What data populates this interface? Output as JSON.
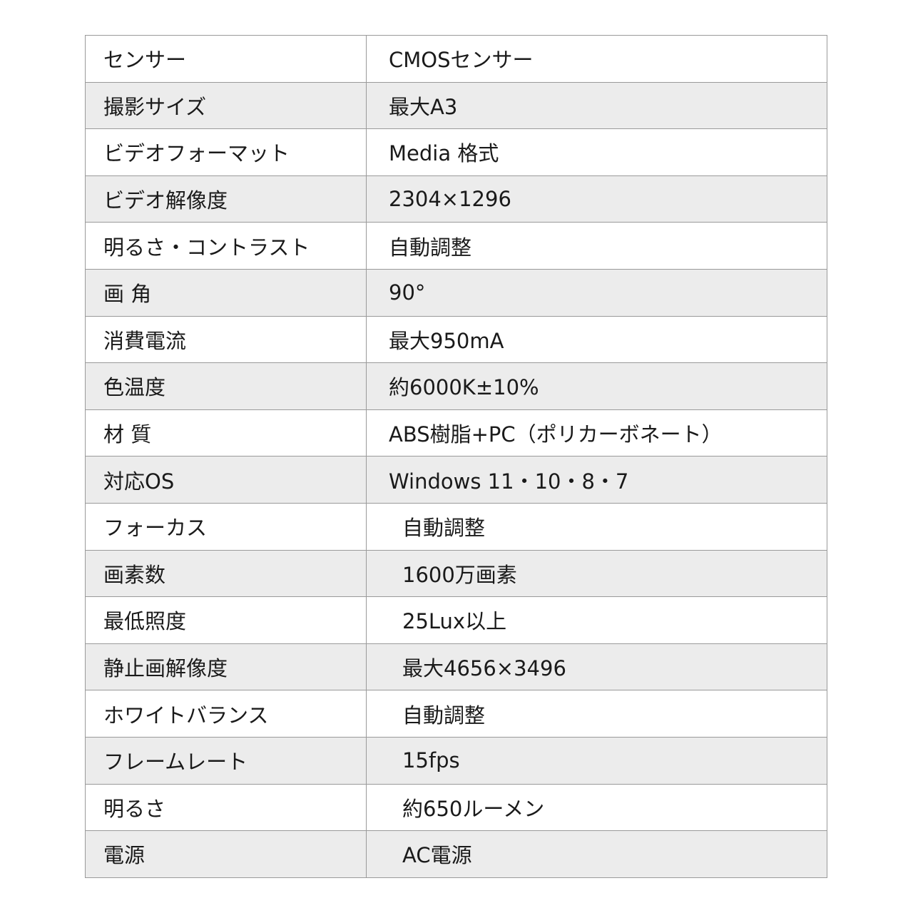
{
  "specs": [
    {
      "label": "センサー",
      "value": "CMOSセンサー"
    },
    {
      "label": "撮影サイズ",
      "value": "最大A3"
    },
    {
      "label": "ビデオフォーマット",
      "value": "Media 格式"
    },
    {
      "label": "ビデオ解像度",
      "value": "2304×1296"
    },
    {
      "label": "明るさ・コントラスト",
      "value": "自動調整"
    },
    {
      "label": "画 角",
      "value": "90°"
    },
    {
      "label": "消費電流",
      "value": "最大950mA"
    },
    {
      "label": "色温度",
      "value": "約6000K±10%"
    },
    {
      "label": "材 質",
      "value": "ABS樹脂+PC（ポリカーボネート）"
    },
    {
      "label": "対応OS",
      "value": "Windows 11・10・8・7"
    },
    {
      "label": "フォーカス",
      "value": "自動調整"
    },
    {
      "label": "画素数",
      "value": "1600万画素"
    },
    {
      "label": "最低照度",
      "value": "25Lux以上"
    },
    {
      "label": "静止画解像度",
      "value": "最大4656×3496"
    },
    {
      "label": "ホワイトバランス",
      "value": "自動調整"
    },
    {
      "label": "フレームレート",
      "value": "15fps"
    },
    {
      "label": "明るさ",
      "value": "約650ルーメン"
    },
    {
      "label": "電源",
      "value": "AC電源"
    }
  ],
  "colors": {
    "stripe": "#ececec",
    "border": "#9a9a9a",
    "text": "#1a1a1a"
  }
}
